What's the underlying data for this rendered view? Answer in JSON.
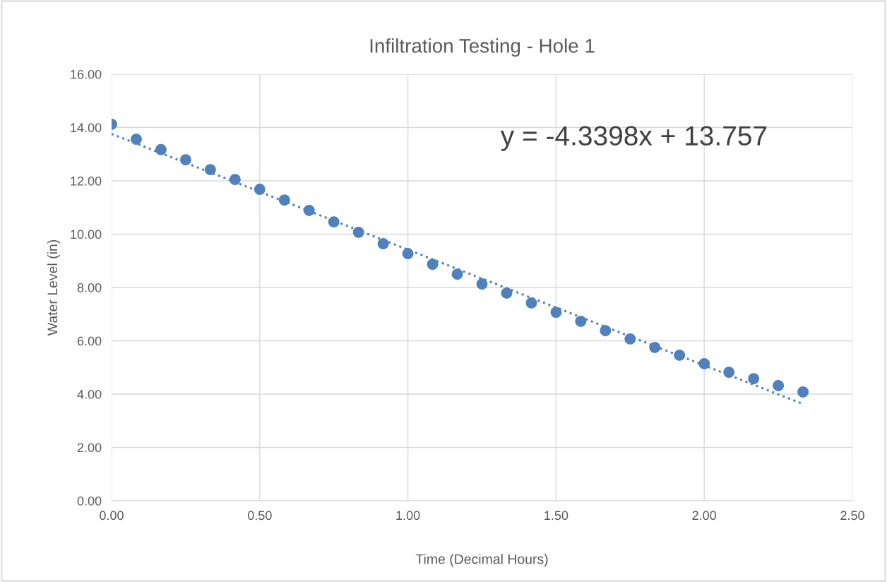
{
  "chart_data": {
    "type": "scatter",
    "title": "Infiltration Testing - Hole 1",
    "xlabel": "Time (Decimal Hours)",
    "ylabel": "Water Level (in)",
    "series": [
      {
        "color": "#4f81bd",
        "marker": "circle",
        "x": [
          0,
          0.0833,
          0.1667,
          0.25,
          0.3333,
          0.4167,
          0.5,
          0.5833,
          0.6667,
          0.75,
          0.8333,
          0.9167,
          1.0,
          1.0833,
          1.1667,
          1.25,
          1.3333,
          1.4167,
          1.5,
          1.5833,
          1.6667,
          1.75,
          1.8333,
          1.9167,
          2.0,
          2.0833,
          2.1667,
          2.25,
          2.3333
        ],
        "values": [
          14.12,
          13.56,
          13.17,
          12.79,
          12.42,
          12.05,
          11.68,
          11.28,
          10.89,
          10.46,
          10.07,
          9.64,
          9.27,
          8.87,
          8.5,
          8.13,
          7.79,
          7.42,
          7.07,
          6.73,
          6.38,
          6.07,
          5.75,
          5.46,
          5.14,
          4.82,
          4.58,
          4.32,
          4.08
        ]
      },
      {
        "type": "line",
        "color": "#4f81bd",
        "line_style": "dotted",
        "x": [
          0,
          2.3333
        ],
        "values": [
          13.76,
          3.63
        ]
      }
    ],
    "annotations": [
      "y = -4.3398x + 13.757"
    ],
    "xlim": [
      0,
      2.5
    ],
    "ylim": [
      0,
      16
    ],
    "xticks": [
      {
        "value": 0,
        "label": "0.00"
      },
      {
        "value": 0.5,
        "label": "0.50"
      },
      {
        "value": 1,
        "label": "1.00"
      },
      {
        "value": 1.5,
        "label": "1.50"
      },
      {
        "value": 2,
        "label": "2.00"
      },
      {
        "value": 2.5,
        "label": "2.50"
      }
    ],
    "yticks": [
      {
        "value": 0,
        "label": "0.00"
      },
      {
        "value": 2,
        "label": "2.00"
      },
      {
        "value": 4,
        "label": "4.00"
      },
      {
        "value": 6,
        "label": "6.00"
      },
      {
        "value": 8,
        "label": "8.00"
      },
      {
        "value": 10,
        "label": "10.00"
      },
      {
        "value": 12,
        "label": "12.00"
      },
      {
        "value": 14,
        "label": "14.00"
      },
      {
        "value": 16,
        "label": "16.00"
      }
    ],
    "grid": true,
    "legend": false
  }
}
